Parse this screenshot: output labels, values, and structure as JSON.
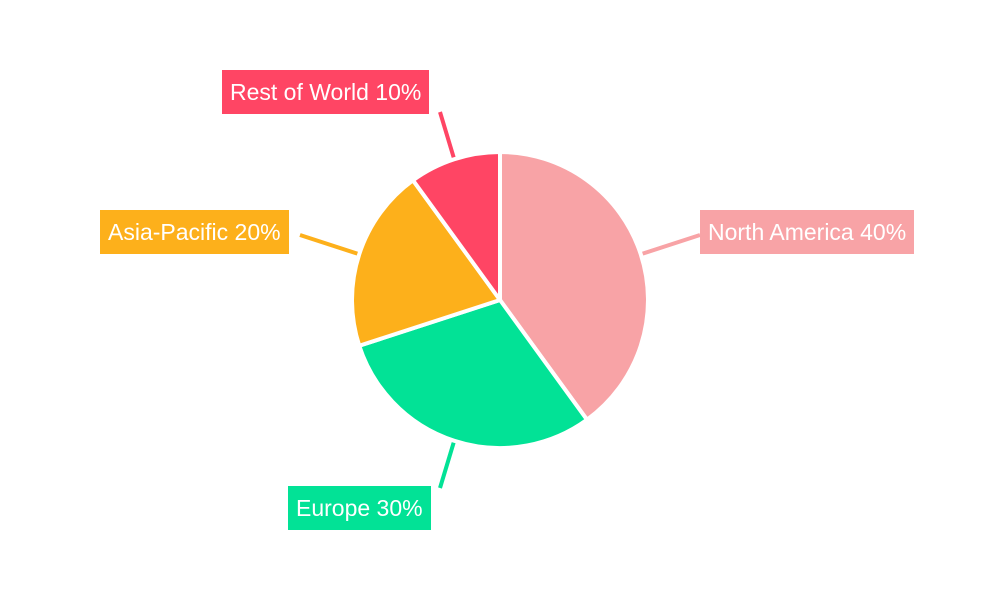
{
  "chart_data": {
    "type": "pie",
    "start_angle_deg": 0,
    "direction": "clockwise",
    "categories": [
      "North America",
      "Europe",
      "Asia-Pacific",
      "Rest of World"
    ],
    "values": [
      40,
      30,
      20,
      10
    ],
    "labels": [
      "North America 40%",
      "Europe 30%",
      "Asia-Pacific 20%",
      "Rest of World 10%"
    ],
    "colors": [
      "#F8A3A6",
      "#02E296",
      "#FDB01B",
      "#FF4564"
    ],
    "legend": "none"
  }
}
